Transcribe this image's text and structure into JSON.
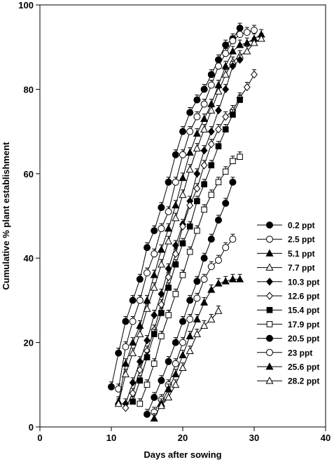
{
  "chart_data": {
    "type": "line",
    "title": "",
    "xlabel": "Days after sowing",
    "ylabel": "Cumulative % plant establishment",
    "xlim": [
      0,
      40
    ],
    "ylim": [
      0,
      100
    ],
    "xticks": [
      0,
      10,
      20,
      30,
      40
    ],
    "yticks": [
      0,
      20,
      40,
      60,
      80,
      100
    ],
    "grid": false,
    "legend_position": "bottom-right",
    "error_bars": true,
    "series": [
      {
        "name": "0.2 ppt",
        "marker": "circle",
        "fill": "filled",
        "x": [
          10,
          11,
          12,
          13,
          14,
          15,
          16,
          17,
          18,
          19,
          20,
          21,
          22,
          23,
          24,
          25,
          26,
          27,
          28
        ],
        "y": [
          9.5,
          17.5,
          25,
          30,
          35,
          42.5,
          46.5,
          52,
          58,
          64.5,
          70,
          74.5,
          77.5,
          80,
          83.5,
          87,
          90.5,
          92,
          94.5
        ]
      },
      {
        "name": "2.5 ppt",
        "marker": "circle",
        "fill": "open",
        "x": [
          11,
          12,
          13,
          14,
          15,
          16,
          17,
          18,
          19,
          20,
          21,
          22,
          23,
          24,
          25,
          26,
          27,
          28,
          29,
          30
        ],
        "y": [
          9,
          19,
          25,
          30,
          36.5,
          41,
          47,
          51,
          58,
          64.5,
          70,
          73.5,
          76.5,
          81,
          85.5,
          88.5,
          91.5,
          93,
          93.5,
          94
        ]
      },
      {
        "name": "5.1 ppt",
        "marker": "triangle-up",
        "fill": "filled",
        "x": [
          11,
          12,
          13,
          14,
          15,
          16,
          17,
          18,
          19,
          20,
          21,
          22,
          23,
          24,
          25,
          26,
          27,
          28,
          29,
          30,
          31
        ],
        "y": [
          6,
          15,
          20,
          24,
          30,
          36,
          42,
          47,
          52.5,
          59,
          65,
          69.5,
          73,
          76.5,
          81,
          85.5,
          89,
          90.5,
          91,
          92,
          93
        ]
      },
      {
        "name": "7.7 ppt",
        "marker": "triangle-up",
        "fill": "open",
        "x": [
          11,
          12,
          13,
          14,
          15,
          16,
          17,
          18,
          19,
          20,
          21,
          22,
          23,
          24,
          25,
          26,
          27,
          28,
          29,
          30,
          31
        ],
        "y": [
          5.5,
          12.5,
          17.5,
          22,
          28,
          33,
          38.5,
          44,
          49.5,
          55,
          61,
          66,
          70.5,
          75,
          79.5,
          83.5,
          86.5,
          88,
          89,
          91,
          92
        ]
      },
      {
        "name": "10.3 ppt",
        "marker": "diamond",
        "fill": "filled",
        "x": [
          12,
          13,
          14,
          15,
          16,
          17,
          18,
          19,
          20,
          21,
          22,
          23,
          24,
          25,
          26,
          27,
          28
        ],
        "y": [
          5.5,
          10.5,
          15.5,
          20.5,
          26.5,
          31.5,
          37.5,
          43,
          48,
          53.5,
          60,
          65.5,
          70,
          75,
          80,
          85.5,
          87
        ]
      },
      {
        "name": "12.6 ppt",
        "marker": "diamond",
        "fill": "open",
        "x": [
          12,
          13,
          14,
          15,
          16,
          17,
          18,
          19,
          20,
          21,
          22,
          23,
          24,
          25,
          26,
          27,
          28,
          29,
          30
        ],
        "y": [
          4.5,
          8,
          13.5,
          18,
          23,
          29,
          35.5,
          41,
          47.5,
          52.5,
          56.5,
          62,
          67,
          70.5,
          73.5,
          75,
          78,
          80.5,
          83.5
        ]
      },
      {
        "name": "15.4 ppt",
        "marker": "square",
        "fill": "filled",
        "x": [
          13,
          14,
          15,
          16,
          17,
          18,
          19,
          20,
          21,
          22,
          23,
          24,
          25,
          26,
          27,
          28
        ],
        "y": [
          6,
          11,
          16.5,
          22,
          27,
          33,
          38.5,
          43.5,
          47.5,
          53.5,
          57.5,
          62,
          66.5,
          70.5,
          74,
          77.5
        ]
      },
      {
        "name": "17.9 ppt",
        "marker": "square",
        "fill": "open",
        "x": [
          14,
          15,
          16,
          17,
          18,
          19,
          20,
          21,
          22,
          23,
          24,
          25,
          26,
          27,
          28
        ],
        "y": [
          5.5,
          10,
          15,
          21.5,
          26.5,
          31.5,
          36,
          41.5,
          46.5,
          51.5,
          55,
          58,
          60.5,
          63,
          64
        ]
      },
      {
        "name": "20.5 ppt",
        "marker": "circle",
        "fill": "filled",
        "x": [
          15,
          16,
          17,
          18,
          19,
          20,
          21,
          22,
          23,
          24,
          25,
          26,
          27
        ],
        "y": [
          3,
          7,
          11,
          15.5,
          20,
          25,
          30,
          34.5,
          40,
          44.5,
          49,
          53,
          58
        ]
      },
      {
        "name": "23 ppt",
        "marker": "circle",
        "fill": "open",
        "x": [
          16,
          17,
          18,
          19,
          20,
          21,
          22,
          23,
          24,
          25,
          26,
          27
        ],
        "y": [
          3.5,
          6.5,
          10,
          15,
          20,
          25.5,
          30.5,
          35,
          38,
          39.5,
          42.5,
          44.5
        ]
      },
      {
        "name": "25.6 ppt",
        "marker": "triangle-up",
        "fill": "filled",
        "x": [
          16,
          17,
          18,
          19,
          20,
          21,
          22,
          23,
          24,
          25,
          26,
          27,
          28
        ],
        "y": [
          2,
          5.5,
          9,
          12.5,
          17,
          21.5,
          25.5,
          29.5,
          32.5,
          34,
          34.5,
          35,
          35
        ]
      },
      {
        "name": "28.2 ppt",
        "marker": "triangle-up",
        "fill": "open",
        "x": [
          17,
          18,
          19,
          20,
          21,
          22,
          23,
          24,
          25
        ],
        "y": [
          5,
          7,
          10,
          14,
          18,
          22,
          24,
          25.5,
          27.5
        ]
      }
    ]
  }
}
